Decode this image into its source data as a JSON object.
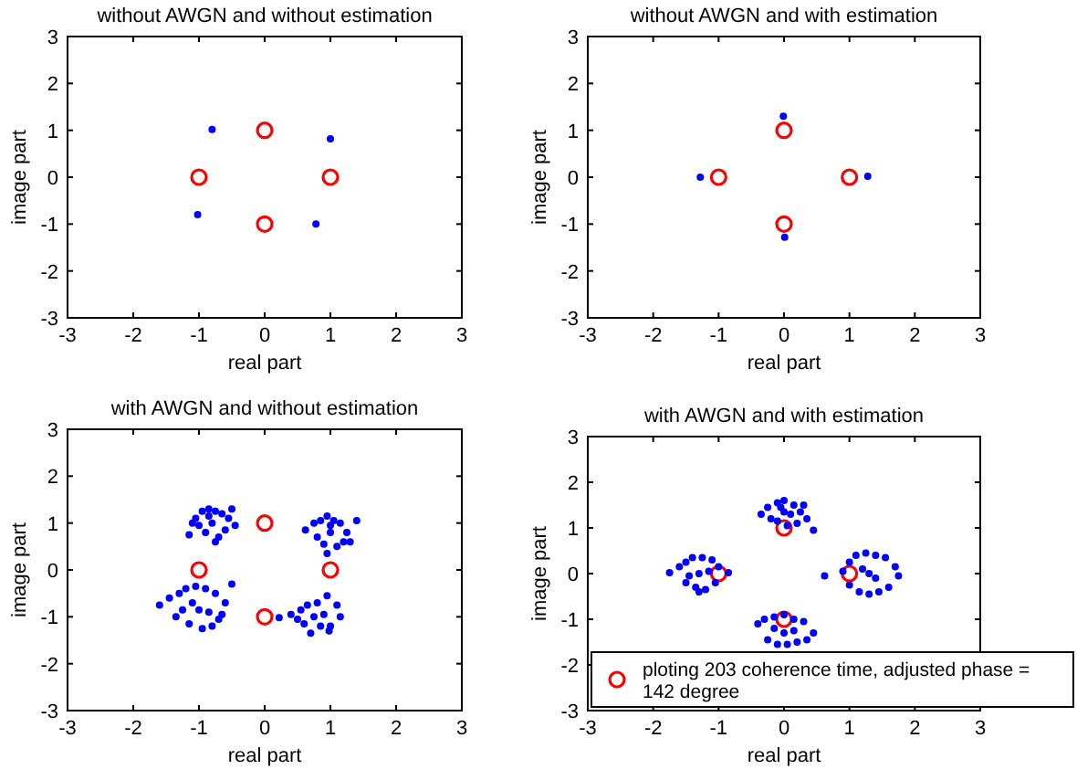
{
  "chart_data": [
    {
      "type": "scatter",
      "title": "without AWGN and without estimation",
      "xlabel": "real part",
      "ylabel": "image part",
      "xlim": [
        -3,
        3
      ],
      "ylim": [
        -3,
        3
      ],
      "xticks": [
        -3,
        -2,
        -1,
        0,
        1,
        2,
        3
      ],
      "yticks": [
        -3,
        -2,
        -1,
        0,
        1,
        2,
        3
      ],
      "legend": false,
      "series": [
        {
          "color": "#ff0000",
          "marker": "circle",
          "x": [
            1,
            0,
            -1,
            0
          ],
          "values": [
            0,
            1,
            0,
            -1
          ]
        },
        {
          "color": "#0000ff",
          "marker": "dot",
          "x": [
            -0.8,
            1.0,
            -1.02,
            0.78
          ],
          "values": [
            1.02,
            0.82,
            -0.8,
            -1.0
          ]
        }
      ]
    },
    {
      "type": "scatter",
      "title": "without AWGN and with estimation",
      "xlabel": "real part",
      "ylabel": "image part",
      "xlim": [
        -3,
        3
      ],
      "ylim": [
        -3,
        3
      ],
      "xticks": [
        -3,
        -2,
        -1,
        0,
        1,
        2,
        3
      ],
      "yticks": [
        -3,
        -2,
        -1,
        0,
        1,
        2,
        3
      ],
      "legend": false,
      "series": [
        {
          "color": "#ff0000",
          "marker": "circle",
          "x": [
            1,
            0,
            -1,
            0
          ],
          "values": [
            0,
            1,
            0,
            -1
          ]
        },
        {
          "color": "#0000ff",
          "marker": "dot",
          "x": [
            -1.28,
            1.28,
            -0.01,
            0.01
          ],
          "values": [
            0,
            0.02,
            1.3,
            -1.28
          ]
        }
      ]
    },
    {
      "type": "scatter",
      "title": "with AWGN and without estimation",
      "xlabel": "real part",
      "ylabel": "image part",
      "xlim": [
        -3,
        3
      ],
      "ylim": [
        -3,
        3
      ],
      "xticks": [
        -3,
        -2,
        -1,
        0,
        1,
        2,
        3
      ],
      "yticks": [
        -3,
        -2,
        -1,
        0,
        1,
        2,
        3
      ],
      "legend": false,
      "series": [
        {
          "color": "#ff0000",
          "marker": "circle",
          "x": [
            1,
            0,
            -1,
            0
          ],
          "values": [
            0,
            1,
            0,
            -1
          ]
        },
        {
          "color": "#0000ff",
          "marker": "dot",
          "x": [
            -1.15,
            -1.05,
            -0.95,
            -0.85,
            -0.75,
            -0.65,
            -0.55,
            -0.45,
            -0.9,
            -0.7,
            -1.0,
            -0.6,
            -0.8,
            -0.85,
            -0.75,
            -1.1,
            -0.5,
            0.62,
            0.75,
            0.85,
            0.95,
            1.05,
            1.15,
            1.25,
            1.4,
            0.9,
            1.1,
            0.95,
            1.0,
            1.2,
            0.8,
            1.3,
            1.0,
            -1.6,
            -1.45,
            -1.3,
            -1.2,
            -1.05,
            -0.9,
            -0.75,
            -0.6,
            -0.5,
            -1.35,
            -1.15,
            -0.95,
            -0.8,
            -0.7,
            -1.0,
            -1.1,
            -0.85,
            -1.25,
            -0.65,
            0.22,
            0.4,
            0.55,
            0.65,
            0.8,
            0.95,
            1.1,
            1.15,
            0.98,
            0.6,
            0.7,
            0.85,
            1.0,
            0.75,
            0.9,
            0.5
          ],
          "values": [
            0.75,
            1.1,
            1.25,
            1.3,
            1.25,
            1.2,
            1.1,
            0.95,
            0.8,
            0.7,
            0.95,
            0.85,
            1.0,
            1.15,
            0.6,
            1.0,
            1.3,
            0.85,
            1.0,
            1.05,
            1.15,
            1.05,
            1.0,
            0.8,
            1.05,
            0.55,
            0.5,
            0.35,
            0.8,
            0.6,
            0.7,
            0.6,
            0.95,
            -0.75,
            -0.6,
            -0.5,
            -0.4,
            -0.35,
            -0.4,
            -0.5,
            -0.7,
            -0.3,
            -1.0,
            -1.15,
            -1.25,
            -1.2,
            -1.05,
            -0.85,
            -0.7,
            -0.9,
            -0.85,
            -0.95,
            -1.02,
            -0.95,
            -0.85,
            -0.75,
            -0.7,
            -0.55,
            -0.75,
            -1.0,
            -1.3,
            -1.15,
            -1.35,
            -1.2,
            -1.2,
            -1.0,
            -0.95,
            -1.05
          ]
        }
      ]
    },
    {
      "type": "scatter",
      "title": "with AWGN and with estimation",
      "xlabel": "real part",
      "ylabel": "image part",
      "xlim": [
        -3,
        3
      ],
      "ylim": [
        -3,
        3
      ],
      "xticks": [
        -3,
        -2,
        -1,
        0,
        1,
        2,
        3
      ],
      "yticks": [
        -3,
        -2,
        -1,
        0,
        1,
        2,
        3
      ],
      "legend": "bottom",
      "series": [
        {
          "name": "ploting 203 coherence time, adjusted phase = 142 degree",
          "color": "#ff0000",
          "marker": "circle",
          "x": [
            1,
            0,
            -1,
            0
          ],
          "values": [
            0,
            1,
            0,
            -1
          ]
        },
        {
          "color": "#0000ff",
          "marker": "dot",
          "x": [
            -1.75,
            -1.6,
            -1.5,
            -1.4,
            -1.25,
            -1.1,
            -1.0,
            -0.85,
            -1.5,
            -1.35,
            -1.2,
            -1.05,
            -1.3,
            -1.45,
            -1.15,
            -1.3,
            -0.35,
            -0.25,
            -0.1,
            0.0,
            0.15,
            0.3,
            0.45,
            0.2,
            0.05,
            -0.1,
            -0.2,
            0.0,
            0.1,
            -0.05,
            0.25,
            0.35,
            0.62,
            0.9,
            1.0,
            1.1,
            1.25,
            1.4,
            1.55,
            1.7,
            1.75,
            1.6,
            1.45,
            1.3,
            1.15,
            1.0,
            1.3,
            1.2,
            1.4,
            -0.4,
            -0.3,
            -0.15,
            0.0,
            0.15,
            0.3,
            0.45,
            0.35,
            0.2,
            0.05,
            -0.1,
            -0.25,
            0.0,
            0.15,
            -0.15
          ],
          "values": [
            0.02,
            0.15,
            0.25,
            0.35,
            0.35,
            0.3,
            0.15,
            0.02,
            -0.2,
            -0.3,
            -0.35,
            -0.2,
            0.0,
            -0.05,
            0.05,
            -0.4,
            1.3,
            1.45,
            1.55,
            1.6,
            1.5,
            1.5,
            0.95,
            1.1,
            1.05,
            1.15,
            1.2,
            1.35,
            1.3,
            1.45,
            1.35,
            1.2,
            -0.05,
            0.05,
            0.25,
            0.4,
            0.45,
            0.4,
            0.35,
            0.15,
            -0.05,
            -0.3,
            -0.4,
            -0.45,
            -0.4,
            -0.25,
            0.0,
            0.1,
            -0.1,
            -1.1,
            -1.0,
            -0.95,
            -0.9,
            -1.0,
            -1.05,
            -1.3,
            -1.45,
            -1.5,
            -1.55,
            -1.55,
            -1.45,
            -1.3,
            -1.25,
            -1.2
          ]
        }
      ]
    }
  ]
}
